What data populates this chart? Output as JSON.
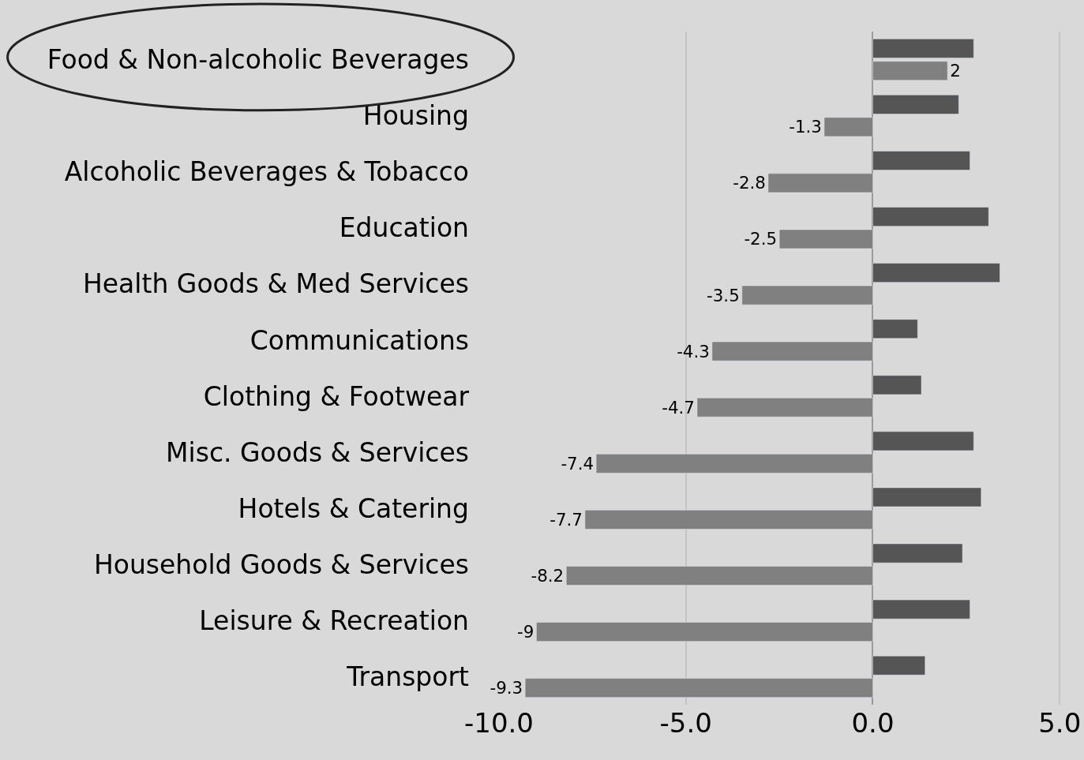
{
  "chart_data": {
    "type": "bar",
    "orientation": "horizontal",
    "categories": [
      "Food & Non-alcoholic Beverages",
      "Housing",
      "Alcoholic Beverages & Tobacco",
      "Education",
      "Health Goods & Med Services",
      "Communications",
      "Clothing & Footwear",
      "Misc. Goods & Services",
      "Hotels & Catering",
      "Household Goods & Services",
      "Leisure & Recreation",
      "Transport"
    ],
    "series": [
      {
        "color": "#555555",
        "values": [
          2.7,
          2.3,
          2.6,
          3.1,
          3.4,
          1.2,
          1.3,
          2.7,
          2.9,
          2.4,
          2.6,
          1.4
        ]
      },
      {
        "color": "#808080",
        "values": [
          2,
          -1.3,
          -2.8,
          -2.5,
          -3.5,
          -4.3,
          -4.7,
          -7.4,
          -7.7,
          -8.2,
          -9,
          -9.3
        ],
        "value_labels": [
          "2",
          "-1.3",
          "-2.8",
          "-2.5",
          "-3.5",
          "-4.3",
          "-4.7",
          "-7.4",
          "-7.7",
          "-8.2",
          "-9",
          "-9.3"
        ]
      }
    ],
    "xlim": [
      -10,
      5.65
    ],
    "xticks": [
      {
        "value": -10,
        "label": "-10.0"
      },
      {
        "value": -5,
        "label": "-5.0"
      },
      {
        "value": 0,
        "label": "0.0"
      },
      {
        "value": 5,
        "label": "5.0"
      }
    ],
    "grid": "x"
  }
}
